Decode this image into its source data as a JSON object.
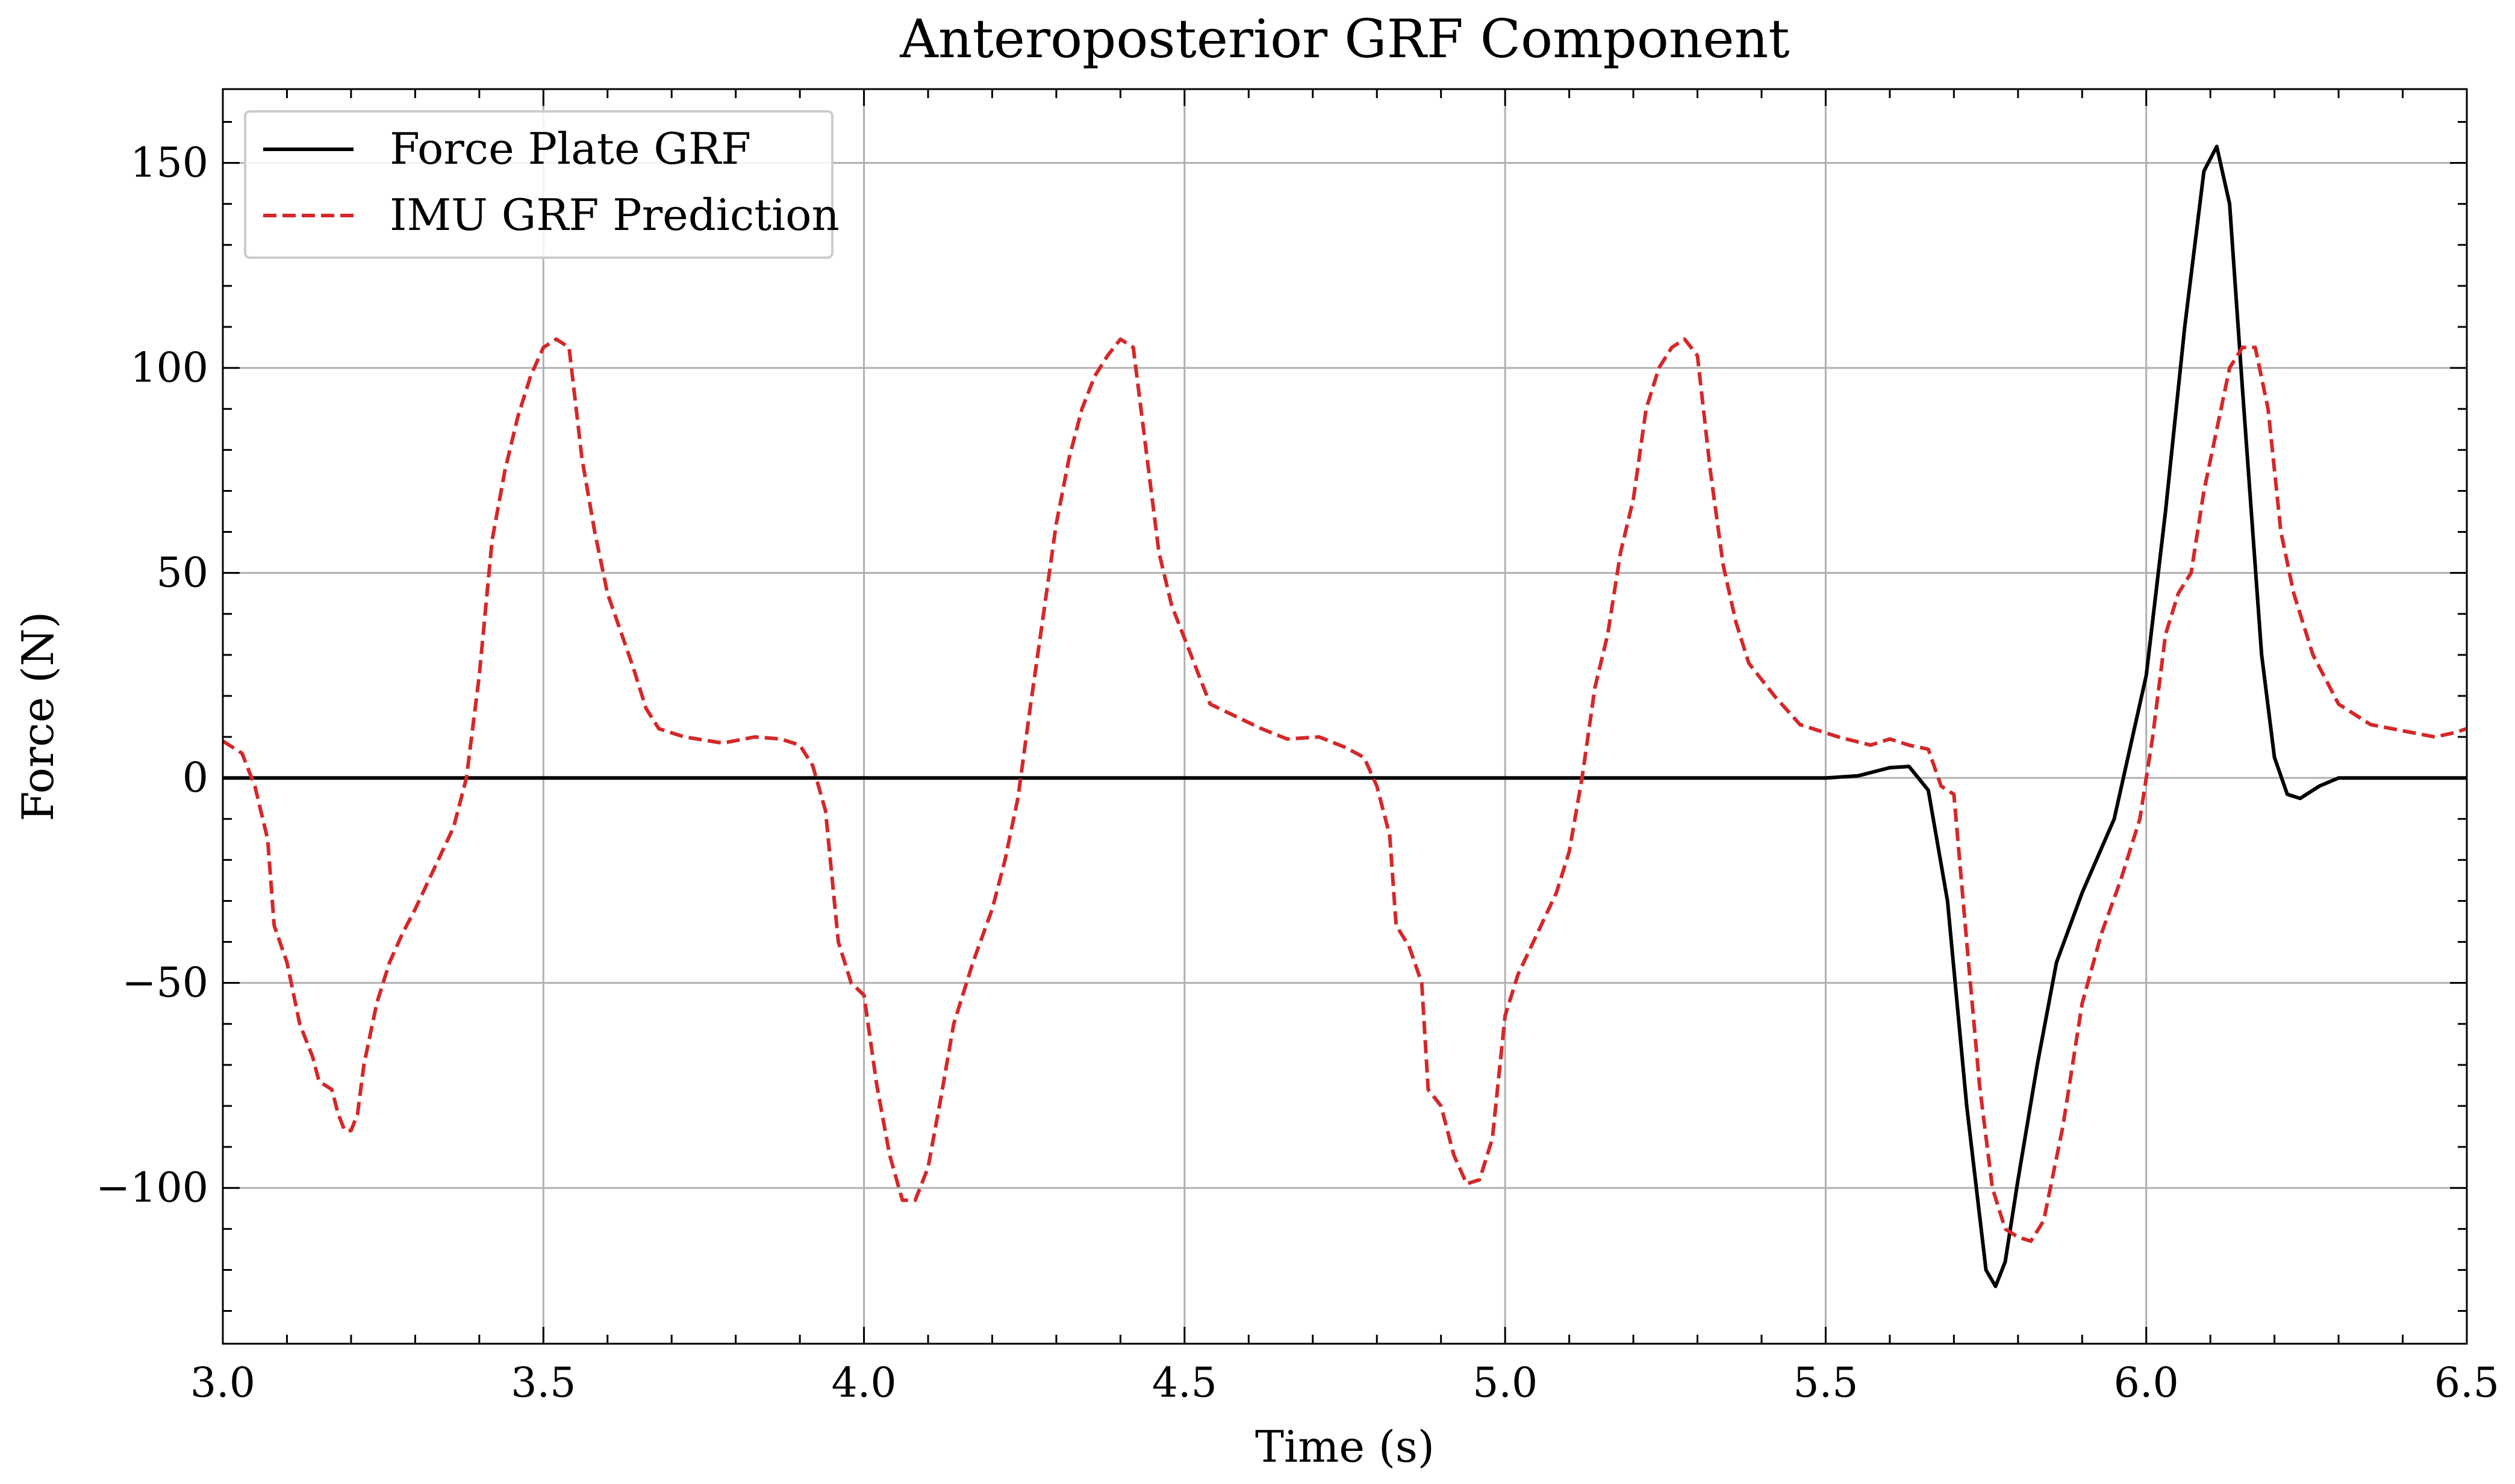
{
  "chart_data": {
    "type": "line",
    "title": "Anteroposterior GRF Component",
    "xlabel": "Time (s)",
    "ylabel": "Force (N)",
    "xlim": [
      3.0,
      6.5
    ],
    "ylim": [
      -138,
      168
    ],
    "x_ticks": [
      3.0,
      3.5,
      4.0,
      4.5,
      5.0,
      5.5,
      6.0,
      6.5
    ],
    "x_tick_labels": [
      "3.0",
      "3.5",
      "4.0",
      "4.5",
      "5.0",
      "5.5",
      "6.0",
      "6.5"
    ],
    "y_ticks": [
      -100,
      -50,
      0,
      50,
      100,
      150
    ],
    "y_tick_labels": [
      "−100",
      "−50",
      "0",
      "50",
      "100",
      "150"
    ],
    "grid": true,
    "legend_position": "top-left",
    "series": [
      {
        "name": "Force Plate GRF",
        "color": "#000000",
        "style": "solid",
        "points": [
          [
            3.0,
            0
          ],
          [
            5.5,
            0
          ],
          [
            5.55,
            0.5
          ],
          [
            5.6,
            2.5
          ],
          [
            5.63,
            2.8
          ],
          [
            5.66,
            -3
          ],
          [
            5.69,
            -30
          ],
          [
            5.72,
            -80
          ],
          [
            5.75,
            -120
          ],
          [
            5.765,
            -124
          ],
          [
            5.78,
            -118
          ],
          [
            5.8,
            -98
          ],
          [
            5.83,
            -70
          ],
          [
            5.86,
            -45
          ],
          [
            5.9,
            -28
          ],
          [
            5.95,
            -10
          ],
          [
            6.0,
            25
          ],
          [
            6.03,
            65
          ],
          [
            6.06,
            110
          ],
          [
            6.09,
            148
          ],
          [
            6.11,
            154
          ],
          [
            6.13,
            140
          ],
          [
            6.15,
            95
          ],
          [
            6.18,
            30
          ],
          [
            6.2,
            5
          ],
          [
            6.22,
            -4
          ],
          [
            6.24,
            -5
          ],
          [
            6.27,
            -2
          ],
          [
            6.3,
            0
          ],
          [
            6.5,
            0
          ]
        ]
      },
      {
        "name": "IMU GRF Prediction",
        "color": "#d62728",
        "style": "dashed",
        "points": [
          [
            3.0,
            9
          ],
          [
            3.03,
            6
          ],
          [
            3.05,
            -2
          ],
          [
            3.07,
            -15
          ],
          [
            3.08,
            -36
          ],
          [
            3.1,
            -45
          ],
          [
            3.12,
            -60
          ],
          [
            3.14,
            -68
          ],
          [
            3.15,
            -74
          ],
          [
            3.17,
            -76
          ],
          [
            3.18,
            -82
          ],
          [
            3.19,
            -86
          ],
          [
            3.2,
            -86
          ],
          [
            3.21,
            -82
          ],
          [
            3.22,
            -70
          ],
          [
            3.24,
            -55
          ],
          [
            3.26,
            -45
          ],
          [
            3.28,
            -38
          ],
          [
            3.3,
            -32
          ],
          [
            3.33,
            -22
          ],
          [
            3.36,
            -12
          ],
          [
            3.38,
            0
          ],
          [
            3.4,
            25
          ],
          [
            3.42,
            58
          ],
          [
            3.44,
            75
          ],
          [
            3.46,
            88
          ],
          [
            3.48,
            98
          ],
          [
            3.5,
            105
          ],
          [
            3.52,
            107
          ],
          [
            3.54,
            105
          ],
          [
            3.56,
            78
          ],
          [
            3.58,
            60
          ],
          [
            3.6,
            45
          ],
          [
            3.62,
            36
          ],
          [
            3.64,
            27
          ],
          [
            3.66,
            17
          ],
          [
            3.68,
            12
          ],
          [
            3.72,
            10
          ],
          [
            3.78,
            8.5
          ],
          [
            3.83,
            10
          ],
          [
            3.87,
            9.5
          ],
          [
            3.9,
            8
          ],
          [
            3.92,
            3
          ],
          [
            3.94,
            -8
          ],
          [
            3.96,
            -40
          ],
          [
            3.98,
            -50
          ],
          [
            4.0,
            -53
          ],
          [
            4.02,
            -75
          ],
          [
            4.04,
            -92
          ],
          [
            4.06,
            -103
          ],
          [
            4.08,
            -103
          ],
          [
            4.1,
            -95
          ],
          [
            4.12,
            -78
          ],
          [
            4.14,
            -60
          ],
          [
            4.17,
            -45
          ],
          [
            4.2,
            -32
          ],
          [
            4.22,
            -20
          ],
          [
            4.24,
            -5
          ],
          [
            4.26,
            18
          ],
          [
            4.28,
            40
          ],
          [
            4.3,
            62
          ],
          [
            4.32,
            78
          ],
          [
            4.34,
            90
          ],
          [
            4.36,
            98
          ],
          [
            4.38,
            103
          ],
          [
            4.4,
            107
          ],
          [
            4.42,
            105
          ],
          [
            4.44,
            80
          ],
          [
            4.46,
            55
          ],
          [
            4.48,
            42
          ],
          [
            4.5,
            34
          ],
          [
            4.52,
            26
          ],
          [
            4.54,
            18
          ],
          [
            4.58,
            15
          ],
          [
            4.62,
            12
          ],
          [
            4.66,
            9.5
          ],
          [
            4.71,
            10
          ],
          [
            4.75,
            7.5
          ],
          [
            4.78,
            5
          ],
          [
            4.8,
            -2
          ],
          [
            4.82,
            -14
          ],
          [
            4.83,
            -36
          ],
          [
            4.85,
            -41
          ],
          [
            4.87,
            -50
          ],
          [
            4.88,
            -76
          ],
          [
            4.9,
            -80
          ],
          [
            4.92,
            -92
          ],
          [
            4.94,
            -99
          ],
          [
            4.96,
            -98
          ],
          [
            4.98,
            -88
          ],
          [
            5.0,
            -58
          ],
          [
            5.02,
            -48
          ],
          [
            5.05,
            -38
          ],
          [
            5.08,
            -28
          ],
          [
            5.1,
            -18
          ],
          [
            5.12,
            0
          ],
          [
            5.14,
            22
          ],
          [
            5.16,
            35
          ],
          [
            5.18,
            55
          ],
          [
            5.2,
            68
          ],
          [
            5.22,
            90
          ],
          [
            5.24,
            100
          ],
          [
            5.26,
            105
          ],
          [
            5.28,
            107
          ],
          [
            5.3,
            103
          ],
          [
            5.32,
            75
          ],
          [
            5.34,
            52
          ],
          [
            5.36,
            38
          ],
          [
            5.38,
            28
          ],
          [
            5.42,
            20
          ],
          [
            5.46,
            13
          ],
          [
            5.52,
            10
          ],
          [
            5.57,
            8
          ],
          [
            5.6,
            9.5
          ],
          [
            5.63,
            8
          ],
          [
            5.66,
            7
          ],
          [
            5.68,
            -2
          ],
          [
            5.7,
            -4
          ],
          [
            5.72,
            -40
          ],
          [
            5.74,
            -75
          ],
          [
            5.76,
            -100
          ],
          [
            5.78,
            -110
          ],
          [
            5.8,
            -112
          ],
          [
            5.82,
            -113
          ],
          [
            5.84,
            -108
          ],
          [
            5.87,
            -85
          ],
          [
            5.9,
            -55
          ],
          [
            5.93,
            -38
          ],
          [
            5.96,
            -25
          ],
          [
            5.99,
            -10
          ],
          [
            6.01,
            10
          ],
          [
            6.03,
            35
          ],
          [
            6.05,
            45
          ],
          [
            6.07,
            50
          ],
          [
            6.09,
            70
          ],
          [
            6.11,
            85
          ],
          [
            6.13,
            100
          ],
          [
            6.15,
            105
          ],
          [
            6.17,
            105
          ],
          [
            6.19,
            90
          ],
          [
            6.21,
            60
          ],
          [
            6.23,
            45
          ],
          [
            6.26,
            30
          ],
          [
            6.3,
            18
          ],
          [
            6.35,
            13
          ],
          [
            6.45,
            10
          ],
          [
            6.48,
            11
          ],
          [
            6.5,
            12
          ]
        ]
      }
    ]
  }
}
